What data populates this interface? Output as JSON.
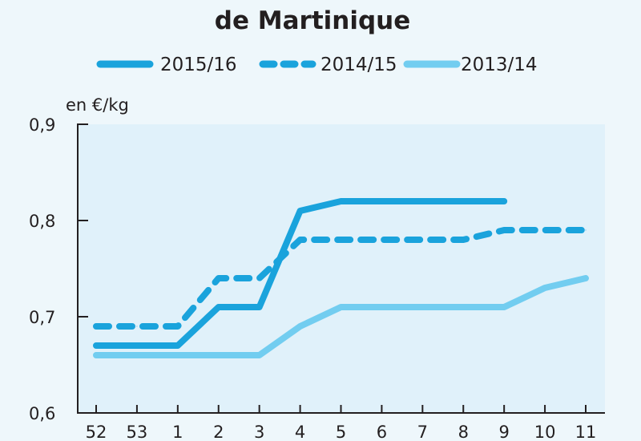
{
  "chart_data": {
    "type": "line",
    "title": "de Martinique",
    "ylabel": "en €/kg",
    "xlabel": "",
    "categories": [
      "52",
      "53",
      "1",
      "2",
      "3",
      "4",
      "5",
      "6",
      "7",
      "8",
      "9",
      "10",
      "11"
    ],
    "yticks": [
      "0,6",
      "0,7",
      "0,8",
      "0,9"
    ],
    "ylim": [
      0.6,
      0.9
    ],
    "grid": false,
    "legend_position": "top",
    "series": [
      {
        "name": "2015/16",
        "style": "solid",
        "color": "#1aa3dc",
        "values": [
          0.67,
          0.67,
          0.67,
          0.71,
          0.71,
          0.81,
          0.82,
          0.82,
          0.82,
          0.82,
          0.82,
          null,
          null
        ]
      },
      {
        "name": "2014/15",
        "style": "dashed",
        "color": "#1aa3dc",
        "values": [
          0.69,
          0.69,
          0.69,
          0.74,
          0.74,
          0.78,
          0.78,
          0.78,
          0.78,
          0.78,
          0.79,
          0.79,
          0.79
        ]
      },
      {
        "name": "2013/14",
        "style": "solid",
        "color": "#72cdf0",
        "values": [
          0.66,
          0.66,
          0.66,
          0.66,
          0.66,
          0.69,
          0.71,
          0.71,
          0.71,
          0.71,
          0.71,
          0.73,
          0.74
        ]
      }
    ]
  }
}
